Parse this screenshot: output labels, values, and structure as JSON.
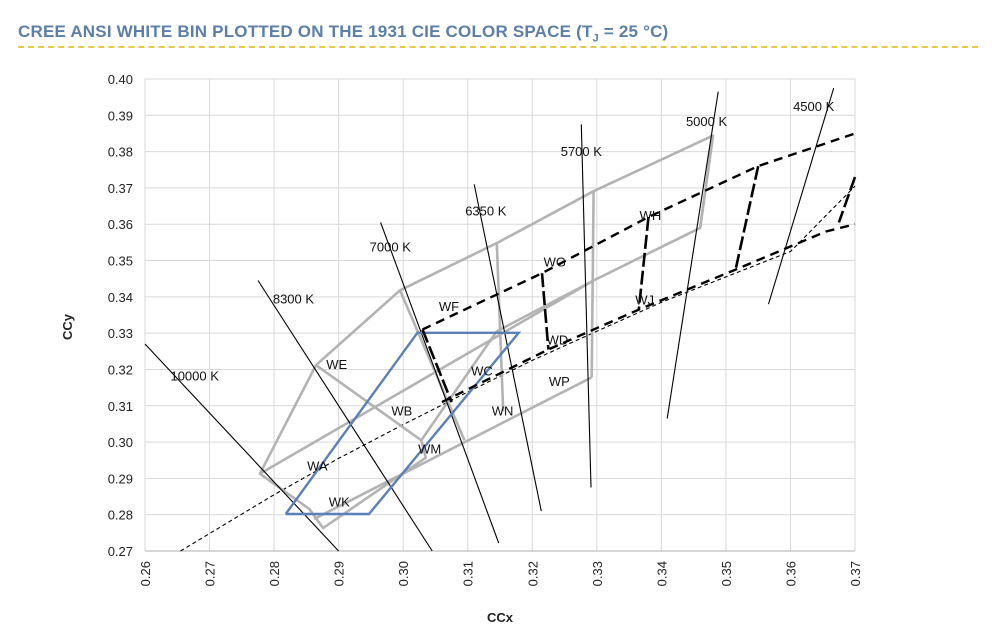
{
  "header": {
    "title_pre": "CREE ANSI WHITE BIN PLOTTED ON THE 1931 CIE COLOR SPACE (T",
    "title_sub": "J",
    "title_post": " = 25 °C)"
  },
  "chart_data": {
    "type": "scatter",
    "title": "CREE ANSI WHITE BIN PLOTTED ON THE 1931 CIE COLOR SPACE (TJ = 25 °C)",
    "xlabel": "CCx",
    "ylabel": "CCy",
    "xlim": [
      0.26,
      0.37
    ],
    "ylim": [
      0.27,
      0.4
    ],
    "xticks": [
      "0.26",
      "0.27",
      "0.28",
      "0.29",
      "0.30",
      "0.31",
      "0.32",
      "0.33",
      "0.34",
      "0.35",
      "0.36",
      "0.37"
    ],
    "yticks": [
      "0.27",
      "0.28",
      "0.29",
      "0.30",
      "0.31",
      "0.32",
      "0.33",
      "0.34",
      "0.35",
      "0.36",
      "0.37",
      "0.38",
      "0.39",
      "0.40"
    ],
    "grid": true,
    "cct_lines": [
      {
        "label": "10000 K",
        "points": [
          [
            0.26,
            0.327
          ],
          [
            0.29,
            0.27
          ]
        ]
      },
      {
        "label": "8300 K",
        "points": [
          [
            0.2775,
            0.3445
          ],
          [
            0.3045,
            0.27
          ]
        ]
      },
      {
        "label": "7000 K",
        "points": [
          [
            0.2965,
            0.3605
          ],
          [
            0.3148,
            0.2722
          ]
        ]
      },
      {
        "label": "6350 K",
        "points": [
          [
            0.311,
            0.371
          ],
          [
            0.3214,
            0.281
          ]
        ]
      },
      {
        "label": "5700 K",
        "points": [
          [
            0.3276,
            0.3875
          ],
          [
            0.3291,
            0.2875
          ]
        ]
      },
      {
        "label": "5000 K",
        "points": [
          [
            0.3488,
            0.3965
          ],
          [
            0.3409,
            0.3065
          ]
        ]
      },
      {
        "label": "4500 K",
        "points": [
          [
            0.3667,
            0.3975
          ],
          [
            0.3566,
            0.338
          ]
        ]
      }
    ],
    "planckian_locus": [
      [
        0.2655,
        0.27
      ],
      [
        0.28,
        0.2855
      ],
      [
        0.29,
        0.2955
      ],
      [
        0.3,
        0.3048
      ],
      [
        0.31,
        0.3138
      ],
      [
        0.32,
        0.3225
      ],
      [
        0.33,
        0.3305
      ],
      [
        0.34,
        0.3385
      ],
      [
        0.35,
        0.3455
      ],
      [
        0.36,
        0.3525
      ],
      [
        0.37,
        0.3705
      ]
    ],
    "ansi_grid_outer": [
      [
        0.2865,
        0.3212
      ],
      [
        0.2995,
        0.3418
      ],
      [
        0.3145,
        0.3548
      ],
      [
        0.3295,
        0.3691
      ],
      [
        0.348,
        0.3844
      ],
      [
        0.346,
        0.359
      ],
      [
        0.3295,
        0.3445
      ],
      [
        0.3145,
        0.3305
      ],
      [
        0.3028,
        0.3005
      ],
      [
        0.3035,
        0.2957
      ],
      [
        0.2876,
        0.2763
      ],
      [
        0.2855,
        0.2815
      ],
      [
        0.2778,
        0.2913
      ],
      [
        0.2865,
        0.3212
      ]
    ],
    "ansi_grid_lines": [
      [
        [
          0.2778,
          0.2913
        ],
        [
          0.3294,
          0.3444
        ]
      ],
      [
        [
          0.2862,
          0.2788
        ],
        [
          0.3292,
          0.3178
        ]
      ],
      [
        [
          0.2865,
          0.3212
        ],
        [
          0.3028,
          0.3005
        ]
      ],
      [
        [
          0.2995,
          0.3418
        ],
        [
          0.3095,
          0.3005
        ]
      ],
      [
        [
          0.3145,
          0.3548
        ],
        [
          0.3155,
          0.3085
        ]
      ],
      [
        [
          0.3295,
          0.3691
        ],
        [
          0.3292,
          0.3178
        ]
      ],
      [
        [
          0.348,
          0.3844
        ],
        [
          0.346,
          0.359
        ]
      ]
    ],
    "cree_blue_bin": [
      [
        0.2818,
        0.2802
      ],
      [
        0.2947,
        0.2802
      ],
      [
        0.3179,
        0.3301
      ],
      [
        0.3022,
        0.3301
      ],
      [
        0.2818,
        0.2802
      ]
    ],
    "cree_dashed_bins": {
      "upper": [
        [
          0.303,
          0.331
        ],
        [
          0.3215,
          0.3465
        ],
        [
          0.338,
          0.362
        ],
        [
          0.355,
          0.376
        ],
        [
          0.37,
          0.385
        ]
      ],
      "lower": [
        [
          0.306,
          0.311
        ],
        [
          0.3225,
          0.3255
        ],
        [
          0.3365,
          0.3365
        ],
        [
          0.3515,
          0.3475
        ],
        [
          0.3655,
          0.358
        ],
        [
          0.37,
          0.36
        ]
      ],
      "dividers": [
        [
          [
            0.303,
            0.331
          ],
          [
            0.3075,
            0.311
          ]
        ],
        [
          [
            0.3215,
            0.3465
          ],
          [
            0.3225,
            0.3255
          ]
        ],
        [
          [
            0.338,
            0.362
          ],
          [
            0.3365,
            0.3365
          ]
        ],
        [
          [
            0.355,
            0.376
          ],
          [
            0.3515,
            0.3475
          ]
        ],
        [
          [
            0.37,
            0.373
          ],
          [
            0.3675,
            0.3605
          ]
        ]
      ]
    },
    "bin_labels": [
      {
        "label": "WE",
        "x": 0.2897,
        "y": 0.3215
      },
      {
        "label": "WF",
        "x": 0.3071,
        "y": 0.3375
      },
      {
        "label": "WG",
        "x": 0.3235,
        "y": 0.3498
      },
      {
        "label": "WH",
        "x": 0.3383,
        "y": 0.3625
      },
      {
        "label": "WD",
        "x": 0.3239,
        "y": 0.3283
      },
      {
        "label": "WJ",
        "x": 0.3374,
        "y": 0.3393
      },
      {
        "label": "WC",
        "x": 0.3122,
        "y": 0.3197
      },
      {
        "label": "WP",
        "x": 0.3242,
        "y": 0.3168
      },
      {
        "label": "WB",
        "x": 0.2998,
        "y": 0.3087
      },
      {
        "label": "WN",
        "x": 0.3154,
        "y": 0.3087
      },
      {
        "label": "WA",
        "x": 0.2867,
        "y": 0.2935
      },
      {
        "label": "WM",
        "x": 0.3041,
        "y": 0.2982
      },
      {
        "label": "WK",
        "x": 0.2901,
        "y": 0.2837
      }
    ],
    "cct_label_positions": [
      {
        "label": "10000 K",
        "x": 0.2677,
        "y": 0.3183
      },
      {
        "label": "8300 K",
        "x": 0.283,
        "y": 0.3395
      },
      {
        "label": "7000 K",
        "x": 0.298,
        "y": 0.3538
      },
      {
        "label": "6350 K",
        "x": 0.3128,
        "y": 0.3638
      },
      {
        "label": "5700 K",
        "x": 0.3276,
        "y": 0.3802
      },
      {
        "label": "5000 K",
        "x": 0.347,
        "y": 0.3885
      },
      {
        "label": "4500 K",
        "x": 0.3636,
        "y": 0.3925
      }
    ]
  },
  "colors": {
    "title": "#5b7fa6",
    "title_rule": "#e8c84a",
    "grid": "#d9d9d9",
    "axis": "#bfbfbf",
    "ansi_grid": "#b3b3b3",
    "blue_bin": "#5b7fb8",
    "cct_line": "#000000",
    "dashed_bin": "#000000"
  }
}
